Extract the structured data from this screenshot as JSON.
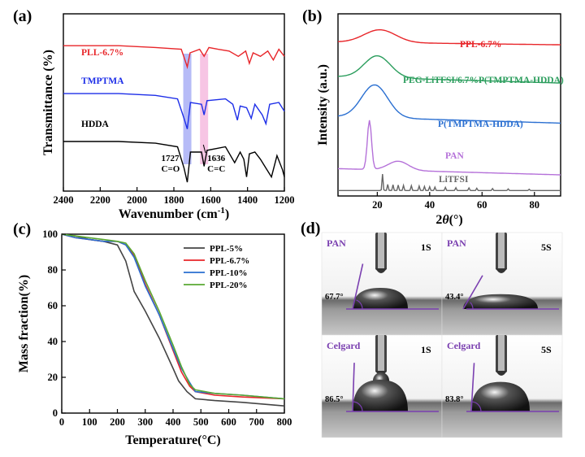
{
  "panels": {
    "a": {
      "label": "(a)",
      "chart_data": {
        "type": "line",
        "xlabel": "Wavenumber (cm-1)",
        "xlabel_main": "Wavenumber (cm",
        "xlabel_sup": "-1",
        "xlabel_close": ")",
        "ylabel": "Transmittance (%)",
        "xlim": [
          2400,
          1200
        ],
        "xticks": [
          2400,
          2200,
          2000,
          1800,
          1600,
          1400,
          1200
        ],
        "series": [
          {
            "name": "PLL-6.7%",
            "color": "#e8262a",
            "offset": 0.82,
            "points": [
              [
                2400,
                0
              ],
              [
                2100,
                0
              ],
              [
                1900,
                -0.01
              ],
              [
                1760,
                -0.02
              ],
              [
                1740,
                -0.08
              ],
              [
                1727,
                -0.12
              ],
              [
                1712,
                -0.04
              ],
              [
                1660,
                -0.02
              ],
              [
                1636,
                -0.06
              ],
              [
                1610,
                -0.01
              ],
              [
                1560,
                -0.02
              ],
              [
                1500,
                -0.03
              ],
              [
                1450,
                -0.06
              ],
              [
                1410,
                -0.03
              ],
              [
                1390,
                -0.1
              ],
              [
                1370,
                -0.04
              ],
              [
                1330,
                -0.06
              ],
              [
                1290,
                -0.03
              ],
              [
                1260,
                -0.08
              ],
              [
                1230,
                -0.02
              ],
              [
                1200,
                -0.06
              ]
            ]
          },
          {
            "name": "TMPTMA",
            "color": "#1d2ee8",
            "offset": 0.55,
            "points": [
              [
                2400,
                0
              ],
              [
                2100,
                0
              ],
              [
                1900,
                -0.01
              ],
              [
                1780,
                -0.03
              ],
              [
                1745,
                -0.14
              ],
              [
                1727,
                -0.2
              ],
              [
                1710,
                -0.05
              ],
              [
                1650,
                -0.06
              ],
              [
                1636,
                -0.12
              ],
              [
                1620,
                -0.04
              ],
              [
                1520,
                -0.03
              ],
              [
                1480,
                -0.06
              ],
              [
                1455,
                -0.15
              ],
              [
                1440,
                -0.07
              ],
              [
                1405,
                -0.08
              ],
              [
                1380,
                -0.14
              ],
              [
                1360,
                -0.06
              ],
              [
                1320,
                -0.12
              ],
              [
                1300,
                -0.17
              ],
              [
                1280,
                -0.06
              ],
              [
                1230,
                -0.05
              ],
              [
                1200,
                -0.1
              ]
            ]
          },
          {
            "name": "HDDA",
            "color": "#000000",
            "offset": 0.28,
            "points": [
              [
                2400,
                0
              ],
              [
                2100,
                0
              ],
              [
                1900,
                -0.01
              ],
              [
                1780,
                -0.03
              ],
              [
                1745,
                -0.15
              ],
              [
                1727,
                -0.23
              ],
              [
                1710,
                -0.06
              ],
              [
                1650,
                -0.06
              ],
              [
                1636,
                -0.14
              ],
              [
                1620,
                -0.05
              ],
              [
                1520,
                -0.03
              ],
              [
                1470,
                -0.12
              ],
              [
                1440,
                -0.06
              ],
              [
                1420,
                -0.1
              ],
              [
                1405,
                -0.2
              ],
              [
                1390,
                -0.07
              ],
              [
                1360,
                -0.06
              ],
              [
                1330,
                -0.1
              ],
              [
                1300,
                -0.15
              ],
              [
                1270,
                -0.2
              ],
              [
                1240,
                -0.08
              ],
              [
                1210,
                -0.16
              ],
              [
                1200,
                -0.2
              ]
            ]
          }
        ],
        "highlights": [
          {
            "center": 1727,
            "color": "#8f96f3"
          },
          {
            "center": 1636,
            "color": "#f2a6d6"
          }
        ],
        "annotations": [
          {
            "text1": "1727",
            "text2": "C=O",
            "x": 1727
          },
          {
            "text1": "1636",
            "text2": "C=C",
            "x": 1636
          }
        ]
      }
    },
    "b": {
      "label": "(b)",
      "chart_data": {
        "type": "line",
        "xlabel": "2θ(°)",
        "xlabel_2": "2",
        "xlabel_theta": "θ",
        "xlabel_rest": "(°)",
        "ylabel": "Intensity (a.u.)",
        "xlim": [
          5,
          90
        ],
        "xticks": [
          20,
          40,
          60,
          80
        ],
        "series": [
          {
            "name": "PPL-6.7%",
            "color": "#e8262a",
            "offset": 0.83,
            "peak": 21,
            "height": 0.07,
            "width": 6
          },
          {
            "name": "PEG-LiTFSI/6.7%P(TMPTMA-HDDA)",
            "color": "#2a9d5c",
            "offset": 0.62,
            "peak": 20,
            "height": 0.12,
            "width": 5
          },
          {
            "name": "P(TMPTMA-HDDA)",
            "color": "#2a6fd1",
            "offset": 0.4,
            "peak": 19,
            "height": 0.18,
            "width": 5
          },
          {
            "name": "PAN",
            "color": "#b571d9",
            "offset": 0.15,
            "peak": 17,
            "height": 0.27,
            "width": 0.8
          },
          {
            "name": "LiTFSI",
            "color": "#666666",
            "offset": 0.02,
            "peak": 22,
            "height": 0.09,
            "width": 0.4
          }
        ]
      }
    },
    "c": {
      "label": "(c)",
      "chart_data": {
        "type": "line",
        "xlabel": "Temperature(°C)",
        "ylabel": "Mass fraction(%)",
        "xlim": [
          0,
          800
        ],
        "ylim": [
          0,
          100
        ],
        "xticks": [
          0,
          100,
          200,
          300,
          400,
          500,
          600,
          700,
          800
        ],
        "yticks": [
          0,
          20,
          40,
          60,
          80,
          100
        ],
        "legend": "top-right",
        "series": [
          {
            "name": "PPL-5%",
            "color": "#444444",
            "x": [
              0,
              50,
              100,
              150,
              200,
              230,
              260,
              300,
              350,
              400,
              420,
              450,
              480,
              550,
              650,
              800
            ],
            "y": [
              100,
              99,
              97,
              96,
              94,
              85,
              68,
              57,
              42,
              25,
              18,
              12,
              8,
              7,
              6,
              4
            ]
          },
          {
            "name": "PPL-6.7%",
            "color": "#e8262a",
            "x": [
              0,
              50,
              100,
              150,
              200,
              230,
              260,
              300,
              350,
              400,
              430,
              460,
              480,
              550,
              650,
              800
            ],
            "y": [
              100,
              98,
              97,
              96,
              96,
              94,
              88,
              72,
              55,
              35,
              23,
              15,
              12,
              10,
              9,
              8
            ]
          },
          {
            "name": "PPL-10%",
            "color": "#2a6fd1",
            "x": [
              0,
              50,
              100,
              150,
              200,
              230,
              260,
              300,
              350,
              400,
              430,
              460,
              480,
              550,
              650,
              800
            ],
            "y": [
              100,
              98,
              97,
              96,
              96,
              94,
              87,
              71,
              55,
              36,
              25,
              17,
              12,
              11,
              10,
              8
            ]
          },
          {
            "name": "PPL-20%",
            "color": "#5aa832",
            "x": [
              0,
              50,
              100,
              150,
              200,
              230,
              260,
              300,
              350,
              400,
              430,
              460,
              480,
              550,
              650,
              800
            ],
            "y": [
              100,
              99,
              98,
              97,
              96,
              95,
              89,
              74,
              57,
              38,
              26,
              16,
              13,
              11,
              10,
              8
            ]
          }
        ]
      }
    },
    "d": {
      "label": "(d)",
      "images": [
        {
          "name": "PAN",
          "time": "1S",
          "angle": "67.7°"
        },
        {
          "name": "PAN",
          "time": "5S",
          "angle": "43.4°"
        },
        {
          "name": "Celgard",
          "time": "1S",
          "angle": "86.5°"
        },
        {
          "name": "Celgard",
          "time": "5S",
          "angle": "83.8°"
        }
      ],
      "label_color": "#7a3fb0"
    }
  }
}
